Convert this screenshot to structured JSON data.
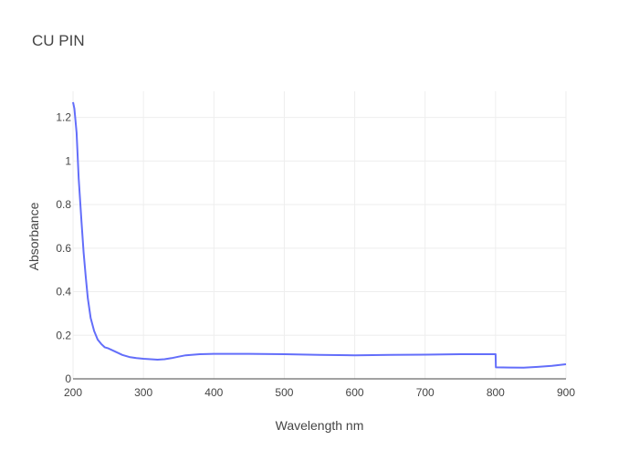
{
  "chart_data": {
    "type": "line",
    "title": "CU PIN",
    "xlabel": "Wavelength nm",
    "ylabel": "Absorbance",
    "xlim": [
      200,
      900
    ],
    "ylim": [
      0,
      1.32
    ],
    "xticks": [
      200,
      300,
      400,
      500,
      600,
      700,
      800,
      900
    ],
    "xtick_labels": [
      "200",
      "300",
      "400",
      "500",
      "600",
      "700",
      "800",
      "900"
    ],
    "yticks": [
      0,
      0.2,
      0.4,
      0.6,
      0.8,
      1,
      1.2
    ],
    "ytick_labels": [
      "0",
      "0.2",
      "0.4",
      "0.6",
      "0.8",
      "1",
      "1.2"
    ],
    "grid": true,
    "legend": false,
    "series": [
      {
        "color": "#636efa",
        "x": [
          200,
          202,
          205,
          208,
          212,
          215,
          218,
          221,
          225,
          230,
          235,
          240,
          245,
          250,
          260,
          270,
          280,
          290,
          300,
          310,
          320,
          330,
          340,
          350,
          360,
          380,
          400,
          450,
          500,
          550,
          600,
          650,
          700,
          750,
          800,
          800.5,
          820,
          840,
          860,
          880,
          900
        ],
        "y": [
          1.27,
          1.24,
          1.13,
          0.92,
          0.72,
          0.58,
          0.47,
          0.37,
          0.28,
          0.22,
          0.18,
          0.16,
          0.145,
          0.14,
          0.125,
          0.11,
          0.1,
          0.095,
          0.092,
          0.09,
          0.088,
          0.09,
          0.095,
          0.102,
          0.108,
          0.113,
          0.115,
          0.115,
          0.113,
          0.11,
          0.108,
          0.11,
          0.111,
          0.113,
          0.113,
          0.053,
          0.052,
          0.051,
          0.055,
          0.06,
          0.067
        ]
      }
    ]
  }
}
